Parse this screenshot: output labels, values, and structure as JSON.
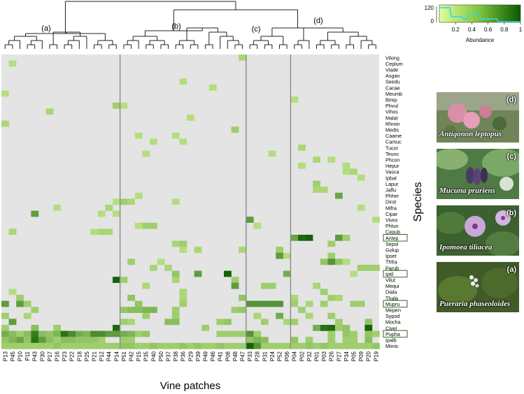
{
  "chart_data": {
    "type": "heatmap",
    "xlabel": "Vine patches",
    "ylabel": "Species",
    "columns": [
      "P13",
      "P45",
      "P10",
      "P11",
      "P43",
      "P30",
      "P17",
      "P16",
      "P23",
      "P22",
      "P18",
      "P25",
      "P21",
      "P12",
      "P44",
      "P14",
      "P51",
      "P42",
      "P15",
      "P35",
      "P40",
      "P50",
      "P37",
      "P38",
      "P36",
      "P29",
      "P39",
      "P49",
      "P46",
      "P41",
      "P08",
      "P48",
      "P47",
      "P33",
      "P28",
      "P31",
      "P24",
      "P52",
      "P06",
      "P04",
      "P02",
      "P32",
      "P01",
      "P03",
      "P26",
      "P27",
      "P34",
      "P05",
      "P09",
      "P20",
      "P19"
    ],
    "rows": [
      "Vilong",
      "Ceplum",
      "Viade",
      "Asgan",
      "Seedu",
      "Cacae",
      "Meumb",
      "Birep",
      "Phvul",
      "Vihos",
      "Malat",
      "Rhmin",
      "Medis",
      "Caame",
      "Camuc",
      "Tucor",
      "Teunc",
      "Phcon",
      "Hepur",
      "Vasca",
      "Ipbat",
      "Lapur",
      "Jaflu",
      "Phher",
      "Dirot",
      "Mifra",
      "Cipar",
      "Vivex",
      "Phlun",
      "Cepub",
      "Anlep",
      "Sepol",
      "Golup",
      "Ipset",
      "Thfra",
      "Parub",
      "Iptil",
      "Vilut",
      "Mequi",
      "Diala",
      "Thala",
      "Mupru",
      "Mepen",
      "Sypod",
      "Mocha",
      "Civer",
      "Pupha",
      "Ipalb",
      "Mimic"
    ],
    "boxed_rows": [
      "Anlep",
      "Iptil",
      "Mupru",
      "Pupha"
    ],
    "group_labels": [
      "(a)",
      "(b)",
      "(c)",
      "(d)"
    ],
    "group_sizes": [
      16,
      17,
      6,
      12
    ],
    "legend": {
      "title": "Abundance",
      "ticks": [
        "0.2",
        "0.4",
        "0.6",
        "0.8",
        "1"
      ],
      "density_ticks": [
        "0",
        "120"
      ]
    },
    "colors": {
      "background": "#e4e4e4",
      "low": "#dfff9c",
      "high": "#0a5a00"
    },
    "cells": [
      [
        "Vilong",
        "P47",
        0.25
      ],
      [
        "Ceplum",
        "P45",
        0.2
      ],
      [
        "Seedu",
        "P36",
        0.2
      ],
      [
        "Cacae",
        "P46",
        0.2
      ],
      [
        "Meumb",
        "P13",
        0.2
      ],
      [
        "Birep",
        "P04",
        0.2
      ],
      [
        "Phvul",
        "P14",
        0.3
      ],
      [
        "Phvul",
        "P51",
        0.2
      ],
      [
        "Vihos",
        "P17",
        0.25
      ],
      [
        "Malat",
        "P29",
        0.2
      ],
      [
        "Rhmin",
        "P13",
        0.25
      ],
      [
        "Medis",
        "P48",
        0.3
      ],
      [
        "Caame",
        "P15",
        0.2
      ],
      [
        "Caame",
        "P38",
        0.2
      ],
      [
        "Camuc",
        "P40",
        0.2
      ],
      [
        "Camuc",
        "P36",
        0.2
      ],
      [
        "Tucor",
        "P02",
        0.25
      ],
      [
        "Teunc",
        "P24",
        0.2
      ],
      [
        "Teunc",
        "P35",
        0.2
      ],
      [
        "Phcon",
        "P01",
        0.25
      ],
      [
        "Phcon",
        "P26",
        0.2
      ],
      [
        "Hepur",
        "P02",
        0.2
      ],
      [
        "Hepur",
        "P34",
        0.2
      ],
      [
        "Vasca",
        "P34",
        0.2
      ],
      [
        "Vasca",
        "P05",
        0.25
      ],
      [
        "Ipbat",
        "P09",
        0.2
      ],
      [
        "Lapur",
        "P01",
        0.3
      ],
      [
        "Jaflu",
        "P01",
        0.25
      ],
      [
        "Jaflu",
        "P03",
        0.25
      ],
      [
        "Phher",
        "P27",
        0.55
      ],
      [
        "Phher",
        "P15",
        0.2
      ],
      [
        "Dirot",
        "P51",
        0.3
      ],
      [
        "Dirot",
        "P42",
        0.25
      ],
      [
        "Dirot",
        "P38",
        0.2
      ],
      [
        "Dirot",
        "P14",
        0.2
      ],
      [
        "Mifra",
        "P16",
        0.2
      ],
      [
        "Mifra",
        "P44",
        0.25
      ],
      [
        "Mifra",
        "P09",
        0.2
      ],
      [
        "Cipar",
        "P43",
        0.6
      ],
      [
        "Cipar",
        "P14",
        0.2
      ],
      [
        "Cipar",
        "P12",
        0.2
      ],
      [
        "Vivex",
        "P33",
        0.6
      ],
      [
        "Vivex",
        "P19",
        0.2
      ],
      [
        "Phlun",
        "P35",
        0.3
      ],
      [
        "Phlun",
        "P40",
        0.3
      ],
      [
        "Phlun",
        "P15",
        0.2
      ],
      [
        "Phlun",
        "P28",
        0.2
      ],
      [
        "Cepub",
        "P45",
        0.25
      ],
      [
        "Cepub",
        "P21",
        0.2
      ],
      [
        "Cepub",
        "P12",
        0.25
      ],
      [
        "Cepub",
        "P44",
        0.25
      ],
      [
        "Anlep",
        "P04",
        0.55
      ],
      [
        "Anlep",
        "P02",
        0.9
      ],
      [
        "Anlep",
        "P32",
        0.95
      ],
      [
        "Anlep",
        "P27",
        0.6
      ],
      [
        "Anlep",
        "P34",
        0.3
      ],
      [
        "Sepol",
        "P38",
        0.25
      ],
      [
        "Sepol",
        "P36",
        0.3
      ],
      [
        "Sepol",
        "P26",
        0.3
      ],
      [
        "Golup",
        "P39",
        0.25
      ],
      [
        "Golup",
        "P36",
        0.2
      ],
      [
        "Golup",
        "P47",
        0.25
      ],
      [
        "Golup",
        "P52",
        0.3
      ],
      [
        "Ipset",
        "P06",
        0.2
      ],
      [
        "Ipset",
        "P26",
        0.3
      ],
      [
        "Ipset",
        "P52",
        0.6
      ],
      [
        "Thfra",
        "P42",
        0.3
      ],
      [
        "Thfra",
        "P50",
        0.2
      ],
      [
        "Thfra",
        "P03",
        0.35
      ],
      [
        "Thfra",
        "P26",
        0.65
      ],
      [
        "Thfra",
        "P27",
        0.35
      ],
      [
        "Thfra",
        "P34",
        0.2
      ],
      [
        "Parub",
        "P40",
        0.25
      ],
      [
        "Parub",
        "P37",
        0.25
      ],
      [
        "Parub",
        "P09",
        0.3
      ],
      [
        "Parub",
        "P20",
        0.3
      ],
      [
        "Parub",
        "P19",
        0.3
      ],
      [
        "Iptil",
        "P39",
        0.6
      ],
      [
        "Iptil",
        "P08",
        0.95
      ],
      [
        "Iptil",
        "P38",
        0.35
      ],
      [
        "Iptil",
        "P06",
        0.5
      ],
      [
        "Iptil",
        "P05",
        0.2
      ],
      [
        "Vilut",
        "P14",
        0.95
      ],
      [
        "Vilut",
        "P51",
        0.3
      ],
      [
        "Vilut",
        "P38",
        0.25
      ],
      [
        "Vilut",
        "P48",
        0.3
      ],
      [
        "Mequi",
        "P35",
        0.25
      ],
      [
        "Mequi",
        "P48",
        0.6
      ],
      [
        "Mequi",
        "P31",
        0.3
      ],
      [
        "Mequi",
        "P24",
        0.3
      ],
      [
        "Mequi",
        "P01",
        0.25
      ],
      [
        "Diala",
        "P45",
        0.2
      ],
      [
        "Diala",
        "P36",
        0.25
      ],
      [
        "Diala",
        "P03",
        0.3
      ],
      [
        "Thala",
        "P10",
        0.3
      ],
      [
        "Thala",
        "P42",
        0.35
      ],
      [
        "Thala",
        "P36",
        0.25
      ],
      [
        "Thala",
        "P47",
        0.35
      ],
      [
        "Thala",
        "P04",
        0.25
      ],
      [
        "Thala",
        "P26",
        0.3
      ],
      [
        "Thala",
        "P27",
        0.25
      ],
      [
        "Mupru",
        "P13",
        0.6
      ],
      [
        "Mupru",
        "P10",
        0.6
      ],
      [
        "Mupru",
        "P11",
        0.3
      ],
      [
        "Mupru",
        "P15",
        0.35
      ],
      [
        "Mupru",
        "P36",
        0.3
      ],
      [
        "Mupru",
        "P33",
        0.65
      ],
      [
        "Mupru",
        "P28",
        0.65
      ],
      [
        "Mupru",
        "P31",
        0.65
      ],
      [
        "Mupru",
        "P24",
        0.65
      ],
      [
        "Mupru",
        "P52",
        0.65
      ],
      [
        "Mupru",
        "P04",
        0.3
      ],
      [
        "Mupru",
        "P32",
        0.25
      ],
      [
        "Mupru",
        "P03",
        0.3
      ],
      [
        "Mupru",
        "P05",
        0.3
      ],
      [
        "Mupru",
        "P09",
        0.3
      ],
      [
        "Mepen",
        "P43",
        0.3
      ],
      [
        "Mepen",
        "P51",
        0.35
      ],
      [
        "Mepen",
        "P42",
        0.4
      ],
      [
        "Mepen",
        "P15",
        0.4
      ],
      [
        "Mepen",
        "P35",
        0.45
      ],
      [
        "Mepen",
        "P40",
        0.45
      ],
      [
        "Mepen",
        "P38",
        0.3
      ],
      [
        "Mepen",
        "P48",
        0.3
      ],
      [
        "Mepen",
        "P47",
        0.35
      ],
      [
        "Mepen",
        "P02",
        0.3
      ],
      [
        "Sypod",
        "P13",
        0.3
      ],
      [
        "Sypod",
        "P11",
        0.25
      ],
      [
        "Sypod",
        "P35",
        0.3
      ],
      [
        "Sypod",
        "P38",
        0.3
      ],
      [
        "Sypod",
        "P28",
        0.25
      ],
      [
        "Sypod",
        "P52",
        0.5
      ],
      [
        "Sypod",
        "P32",
        0.25
      ],
      [
        "Sypod",
        "P26",
        0.3
      ],
      [
        "Mocha",
        "P45",
        0.6
      ],
      [
        "Mocha",
        "P51",
        0.3
      ],
      [
        "Mocha",
        "P42",
        0.25
      ],
      [
        "Mocha",
        "P37",
        0.4
      ],
      [
        "Mocha",
        "P38",
        0.4
      ],
      [
        "Mocha",
        "P41",
        0.3
      ],
      [
        "Mocha",
        "P08",
        0.35
      ],
      [
        "Mocha",
        "P31",
        0.3
      ],
      [
        "Mocha",
        "P06",
        0.25
      ],
      [
        "Mocha",
        "P04",
        0.3
      ],
      [
        "Mocha",
        "P27",
        0.3
      ],
      [
        "Mocha",
        "P20",
        0.35
      ],
      [
        "Civer",
        "P13",
        0.3
      ],
      [
        "Civer",
        "P43",
        0.4
      ],
      [
        "Civer",
        "P16",
        0.3
      ],
      [
        "Civer",
        "P14",
        0.9
      ],
      [
        "Civer",
        "P49",
        0.3
      ],
      [
        "Civer",
        "P01",
        0.5
      ],
      [
        "Civer",
        "P03",
        0.85
      ],
      [
        "Civer",
        "P26",
        0.9
      ],
      [
        "Civer",
        "P27",
        0.3
      ],
      [
        "Civer",
        "P34",
        0.35
      ],
      [
        "Civer",
        "P20",
        0.95
      ],
      [
        "Pupha",
        "P13",
        0.5
      ],
      [
        "Pupha",
        "P45",
        0.4
      ],
      [
        "Pupha",
        "P10",
        0.3
      ],
      [
        "Pupha",
        "P11",
        0.4
      ],
      [
        "Pupha",
        "P43",
        0.8
      ],
      [
        "Pupha",
        "P30",
        0.4
      ],
      [
        "Pupha",
        "P17",
        0.35
      ],
      [
        "Pupha",
        "P16",
        0.45
      ],
      [
        "Pupha",
        "P23",
        0.85
      ],
      [
        "Pupha",
        "P22",
        0.7
      ],
      [
        "Pupha",
        "P18",
        0.5
      ],
      [
        "Pupha",
        "P25",
        0.45
      ],
      [
        "Pupha",
        "P21",
        0.7
      ],
      [
        "Pupha",
        "P12",
        0.7
      ],
      [
        "Pupha",
        "P44",
        0.6
      ],
      [
        "Pupha",
        "P14",
        0.6
      ],
      [
        "Pupha",
        "P51",
        0.5
      ],
      [
        "Pupha",
        "P42",
        0.45
      ],
      [
        "Pupha",
        "P15",
        0.3
      ],
      [
        "Pupha",
        "P35",
        0.35
      ],
      [
        "Pupha",
        "P41",
        0.3
      ],
      [
        "Pupha",
        "P08",
        0.3
      ],
      [
        "Pupha",
        "P48",
        0.3
      ],
      [
        "Pupha",
        "P47",
        0.3
      ],
      [
        "Pupha",
        "P33",
        0.65
      ],
      [
        "Pupha",
        "P28",
        0.3
      ],
      [
        "Pupha",
        "P26",
        0.3
      ],
      [
        "Pupha",
        "P34",
        0.35
      ],
      [
        "Pupha",
        "P05",
        0.3
      ],
      [
        "Pupha",
        "P20",
        0.35
      ],
      [
        "Pupha",
        "P19",
        0.3
      ],
      [
        "Ipalb",
        "P13",
        0.35
      ],
      [
        "Ipalb",
        "P45",
        0.45
      ],
      [
        "Ipalb",
        "P10",
        0.55
      ],
      [
        "Ipalb",
        "P11",
        0.35
      ],
      [
        "Ipalb",
        "P43",
        0.85
      ],
      [
        "Ipalb",
        "P30",
        0.6
      ],
      [
        "Ipalb",
        "P17",
        0.4
      ],
      [
        "Ipalb",
        "P16",
        0.3
      ],
      [
        "Ipalb",
        "P23",
        0.4
      ],
      [
        "Ipalb",
        "P22",
        0.4
      ],
      [
        "Ipalb",
        "P18",
        0.35
      ],
      [
        "Ipalb",
        "P25",
        0.35
      ],
      [
        "Ipalb",
        "P21",
        0.35
      ],
      [
        "Ipalb",
        "P12",
        0.3
      ],
      [
        "Ipalb",
        "P51",
        0.3
      ],
      [
        "Ipalb",
        "P42",
        0.3
      ],
      [
        "Ipalb",
        "P33",
        0.35
      ],
      [
        "Ipalb",
        "P28",
        0.45
      ],
      [
        "Ipalb",
        "P31",
        0.4
      ],
      [
        "Ipalb",
        "P04",
        0.35
      ],
      [
        "Ipalb",
        "P32",
        0.3
      ],
      [
        "Ipalb",
        "P26",
        0.3
      ],
      [
        "Ipalb",
        "P34",
        0.3
      ],
      [
        "Ipalb",
        "P05",
        0.3
      ],
      [
        "Ipalb",
        "P20",
        0.4
      ],
      [
        "Mimic",
        "P13",
        0.3
      ],
      [
        "Mimic",
        "P45",
        0.3
      ],
      [
        "Mimic",
        "P10",
        0.3
      ],
      [
        "Mimic",
        "P11",
        0.3
      ],
      [
        "Mimic",
        "P43",
        0.3
      ],
      [
        "Mimic",
        "P30",
        0.3
      ],
      [
        "Mimic",
        "P17",
        0.3
      ],
      [
        "Mimic",
        "P16",
        0.35
      ],
      [
        "Mimic",
        "P23",
        0.3
      ],
      [
        "Mimic",
        "P22",
        0.3
      ],
      [
        "Mimic",
        "P18",
        0.3
      ],
      [
        "Mimic",
        "P25",
        0.3
      ],
      [
        "Mimic",
        "P21",
        0.3
      ],
      [
        "Mimic",
        "P12",
        0.3
      ],
      [
        "Mimic",
        "P44",
        0.3
      ],
      [
        "Mimic",
        "P14",
        0.3
      ],
      [
        "Mimic",
        "P51",
        0.35
      ],
      [
        "Mimic",
        "P42",
        0.35
      ],
      [
        "Mimic",
        "P15",
        0.3
      ],
      [
        "Mimic",
        "P35",
        0.3
      ],
      [
        "Mimic",
        "P40",
        0.35
      ],
      [
        "Mimic",
        "P50",
        0.3
      ],
      [
        "Mimic",
        "P37",
        0.3
      ],
      [
        "Mimic",
        "P38",
        0.3
      ],
      [
        "Mimic",
        "P36",
        0.35
      ],
      [
        "Mimic",
        "P29",
        0.3
      ],
      [
        "Mimic",
        "P39",
        0.35
      ],
      [
        "Mimic",
        "P49",
        0.3
      ],
      [
        "Mimic",
        "P46",
        0.3
      ],
      [
        "Mimic",
        "P41",
        0.35
      ],
      [
        "Mimic",
        "P08",
        0.3
      ],
      [
        "Mimic",
        "P48",
        0.3
      ],
      [
        "Mimic",
        "P47",
        0.3
      ],
      [
        "Mimic",
        "P33",
        0.95
      ],
      [
        "Mimic",
        "P28",
        0.65
      ],
      [
        "Mimic",
        "P31",
        0.3
      ],
      [
        "Mimic",
        "P24",
        0.3
      ],
      [
        "Mimic",
        "P52",
        0.3
      ],
      [
        "Mimic",
        "P06",
        0.3
      ],
      [
        "Mimic",
        "P04",
        0.3
      ],
      [
        "Mimic",
        "P02",
        0.3
      ],
      [
        "Mimic",
        "P32",
        0.35
      ],
      [
        "Mimic",
        "P01",
        0.3
      ],
      [
        "Mimic",
        "P03",
        0.35
      ],
      [
        "Mimic",
        "P26",
        0.3
      ],
      [
        "Mimic",
        "P27",
        0.3
      ],
      [
        "Mimic",
        "P34",
        0.3
      ],
      [
        "Mimic",
        "P05",
        0.3
      ],
      [
        "Mimic",
        "P09",
        0.3
      ],
      [
        "Mimic",
        "P20",
        0.3
      ],
      [
        "Mimic",
        "P19",
        0.35
      ]
    ]
  },
  "photos": [
    {
      "letter": "(d)",
      "label": "Antigonon leptopus",
      "colors": [
        "#6d7f58",
        "#d98fa8"
      ]
    },
    {
      "letter": "(c)",
      "label": "Mucuna pruriens",
      "colors": [
        "#4f7a46",
        "#4a3a62"
      ]
    },
    {
      "letter": "(b)",
      "label": "Ipomoea tiliacea",
      "colors": [
        "#3c6030",
        "#c9a8d8"
      ]
    },
    {
      "letter": "(a)",
      "label": "Pueraria  phaseoloides",
      "colors": [
        "#405a28",
        "#f2f2f2"
      ]
    }
  ]
}
